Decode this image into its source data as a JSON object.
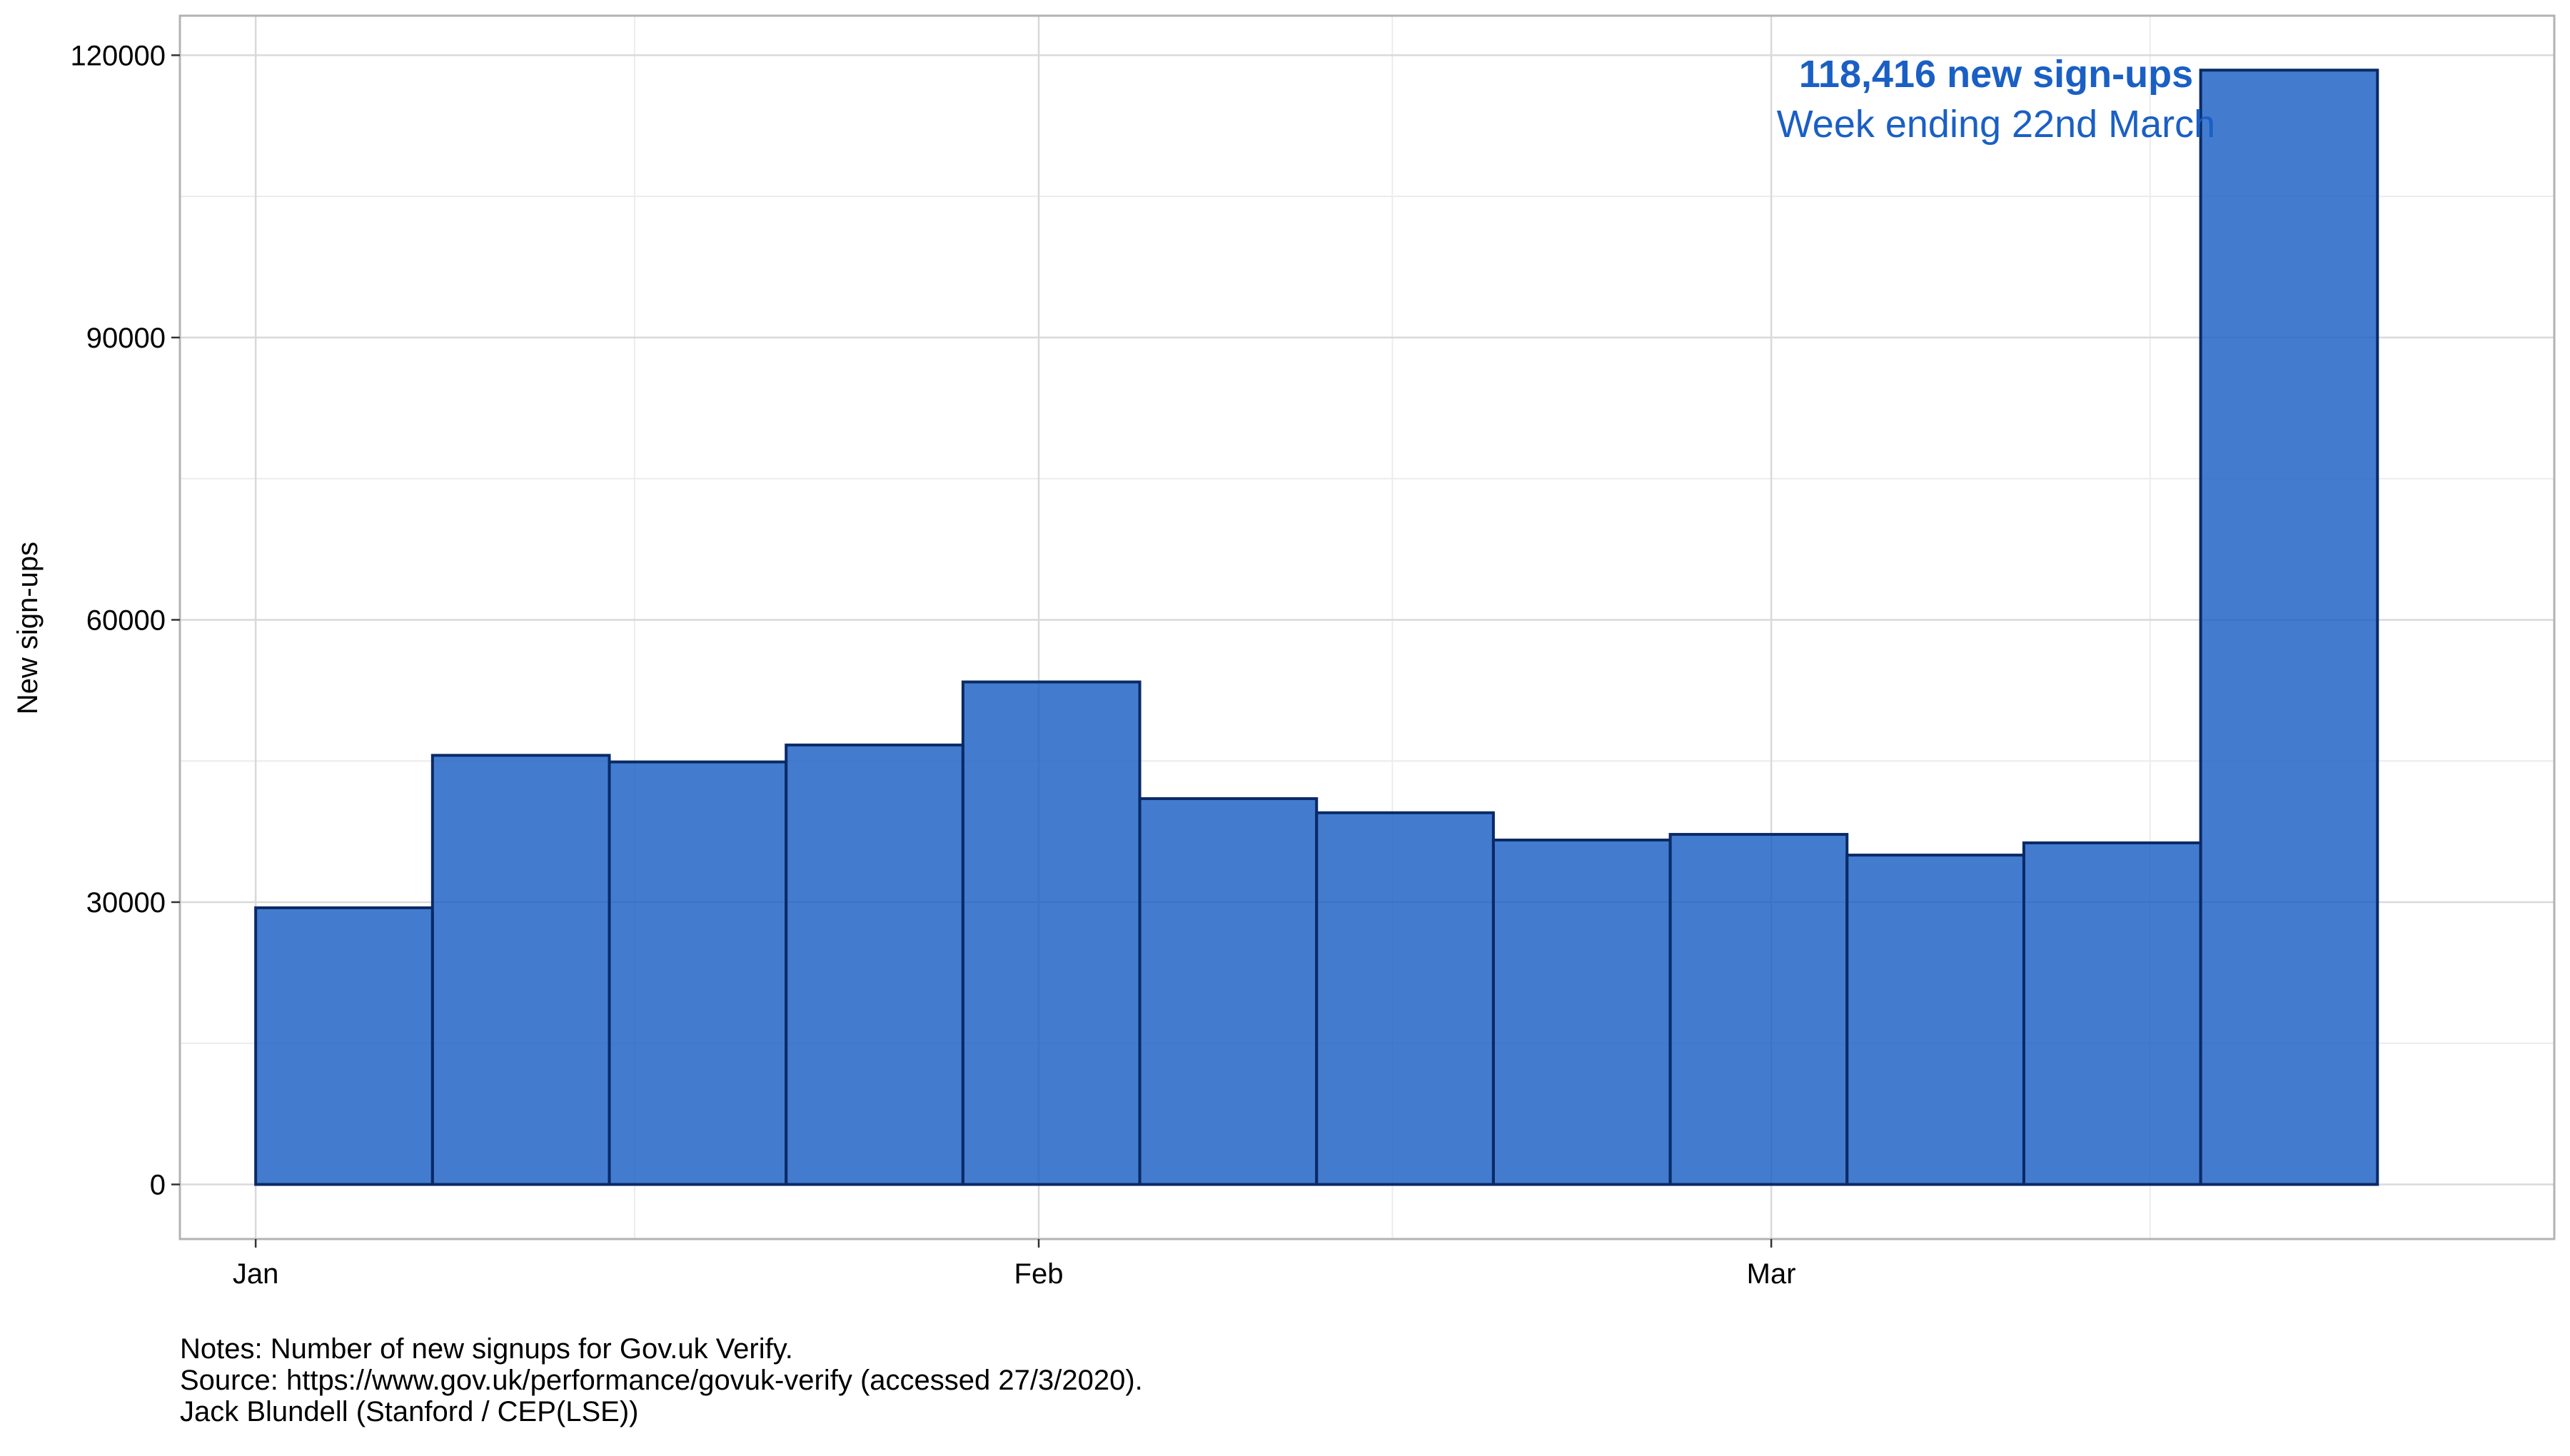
{
  "chart_data": {
    "type": "bar",
    "title": "",
    "xlabel": "",
    "ylabel": "New sign-ups",
    "x_start_dates": [
      "2020-01-01",
      "2020-01-08",
      "2020-01-15",
      "2020-01-22",
      "2020-01-29",
      "2020-02-05",
      "2020-02-12",
      "2020-02-19",
      "2020-02-26",
      "2020-03-04",
      "2020-03-11",
      "2020-03-18"
    ],
    "x_end_dates": [
      "2020-01-08",
      "2020-01-15",
      "2020-01-22",
      "2020-01-29",
      "2020-02-05",
      "2020-02-12",
      "2020-02-19",
      "2020-02-26",
      "2020-03-04",
      "2020-03-11",
      "2020-03-18",
      "2020-03-25"
    ],
    "values": [
      29400,
      45600,
      44900,
      46700,
      53400,
      41000,
      39500,
      36600,
      37200,
      35000,
      36300,
      118416
    ],
    "xlim": [
      "2019-12-29",
      "2020-04-01"
    ],
    "ylim": [
      -5800,
      124200
    ],
    "x_ticks": [
      {
        "date": "2020-01-01",
        "label": "Jan"
      },
      {
        "date": "2020-02-01",
        "label": "Feb"
      },
      {
        "date": "2020-03-01",
        "label": "Mar"
      }
    ],
    "x_minor_ticks": [
      "2020-01-16",
      "2020-02-15",
      "2020-03-16"
    ],
    "y_ticks": [
      0,
      30000,
      60000,
      90000,
      120000
    ],
    "y_minor_ticks": [
      15000,
      45000,
      75000,
      105000
    ],
    "grid": true,
    "colors": {
      "bar_fill": "#1a5fc4",
      "bar_stroke": "#0a2a66",
      "annotation": "#1a5fc4",
      "grid_major": "#d9d9d9",
      "grid_minor": "#ececec",
      "panel_border": "#b3b3b3"
    },
    "annotation": {
      "headline": "118,416 new sign-ups",
      "subline": "Week ending 22nd March"
    }
  },
  "notes": {
    "line1": "Notes: Number of new signups for Gov.uk Verify.",
    "line2": "Source: https://www.gov.uk/performance/govuk-verify (accessed 27/3/2020).",
    "line3": "Jack Blundell (Stanford / CEP(LSE))"
  }
}
